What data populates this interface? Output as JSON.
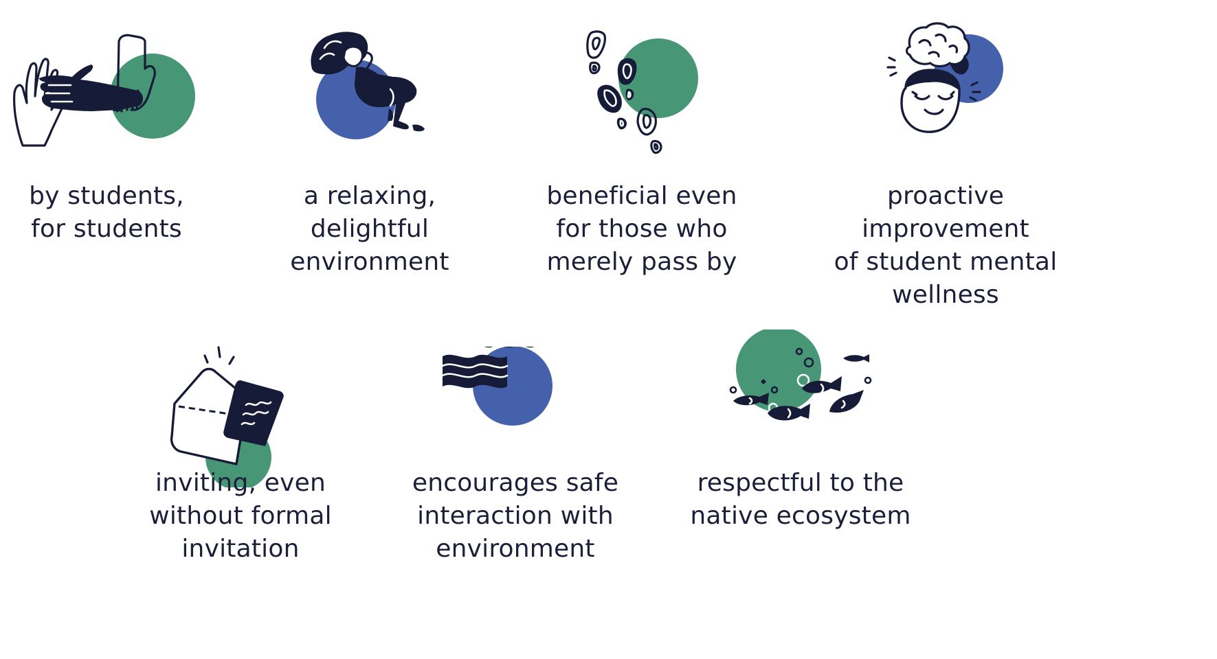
{
  "principles": [
    {
      "label": "by students,\nfor students",
      "icon": "hands-icon",
      "accent": "#479676"
    },
    {
      "label": "a relaxing,\ndelightful\nenvironment",
      "icon": "relaxing-person-icon",
      "accent": "#4561ac"
    },
    {
      "label": "beneficial even\nfor those who\nmerely pass by",
      "icon": "footprints-icon",
      "accent": "#479676"
    },
    {
      "label": "proactive improvement\nof student mental\nwellness",
      "icon": "happy-head-brain-icon",
      "accent": "#4561ac"
    },
    {
      "label": "inviting, even\nwithout formal\ninvitation",
      "icon": "envelope-letter-icon",
      "accent": "#479676"
    },
    {
      "label": "encourages safe\ninteraction with\nenvironment",
      "icon": "waves-icon",
      "accent": "#4561ac"
    },
    {
      "label": "respectful to the\nnative ecosystem",
      "icon": "fish-icon",
      "accent": "#479676"
    }
  ],
  "colors": {
    "green": "#479676",
    "blue": "#4561ac",
    "ink": "#161c38",
    "background": "#ffffff"
  }
}
